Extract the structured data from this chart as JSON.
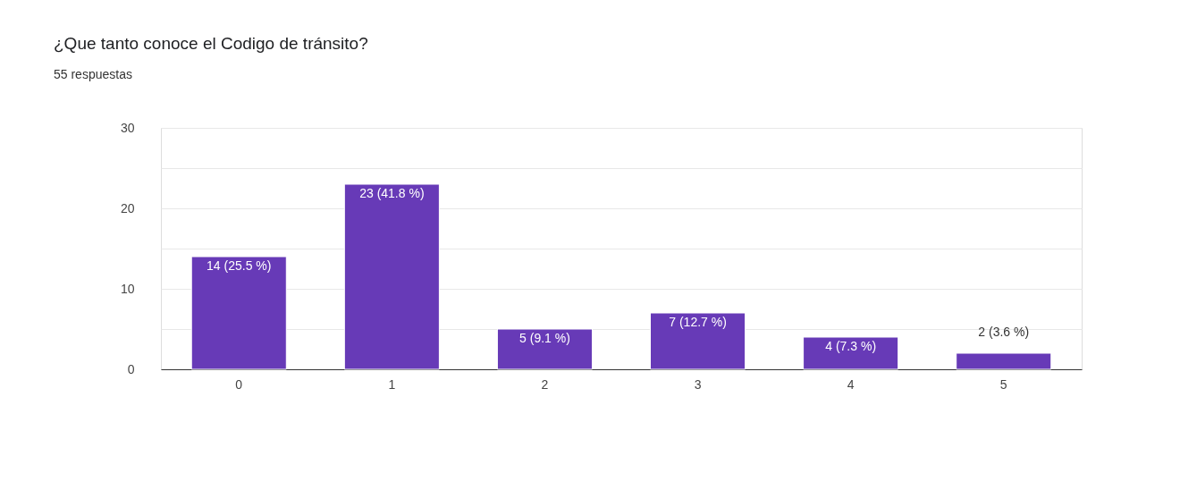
{
  "chart_data": {
    "type": "bar",
    "title": "¿Que tanto conoce el Codigo de tránsito?",
    "subtitle": "55 respuestas",
    "categories": [
      "0",
      "1",
      "2",
      "3",
      "4",
      "5"
    ],
    "values": [
      14,
      23,
      5,
      7,
      4,
      2
    ],
    "value_labels": [
      "14 (25.5 %)",
      "23 (41.8 %)",
      "5 (9.1 %)",
      "7 (12.7 %)",
      "4 (7.3 %)",
      "2 (3.6 %)"
    ],
    "color": "#673ab7",
    "ylim": [
      0,
      30
    ],
    "yticks": [
      0,
      {
        "value": 5,
        "label": null
      },
      10,
      {
        "value": 15,
        "label": null
      },
      20,
      {
        "value": 25,
        "label": null
      },
      30
    ],
    "grid": "y"
  }
}
